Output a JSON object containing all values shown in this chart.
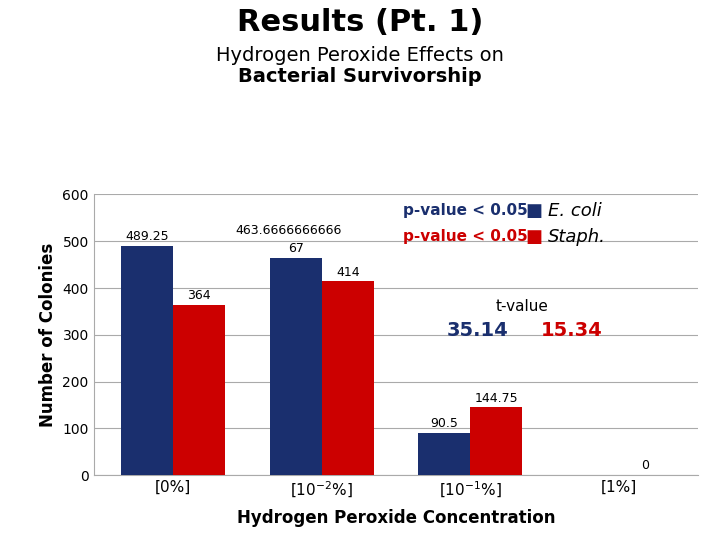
{
  "title_line1": "Results (Pt. 1)",
  "title_line2_1": "Hydrogen Peroxide Effects on",
  "title_line2_2": "Bacterial Survivorship",
  "xlabel": "Hydrogen Peroxide Concentration",
  "ylabel": "Number of Colonies",
  "ecoli_values": [
    489.25,
    463.6666666666,
    90.5,
    0
  ],
  "staph_values": [
    364,
    414,
    144.75,
    0
  ],
  "ecoli_color": "#1a2f6e",
  "staph_color": "#cc0000",
  "ylim": [
    0,
    600
  ],
  "yticks": [
    0,
    100,
    200,
    300,
    400,
    500,
    600
  ],
  "bar_width": 0.35,
  "tvalue_label": "t-value",
  "tvalue_ecoli": "35.14",
  "tvalue_staph": "15.34",
  "ecoli_bar_labels": [
    "489.25",
    "463.6666666666",
    "90.5",
    ""
  ],
  "ecoli_bar_labels_shifted": [
    false,
    true,
    false,
    false
  ],
  "ecoli_bar_labels_above": [
    "67",
    "",
    "",
    ""
  ],
  "staph_bar_labels": [
    "364",
    "414",
    "144.75",
    "0"
  ]
}
